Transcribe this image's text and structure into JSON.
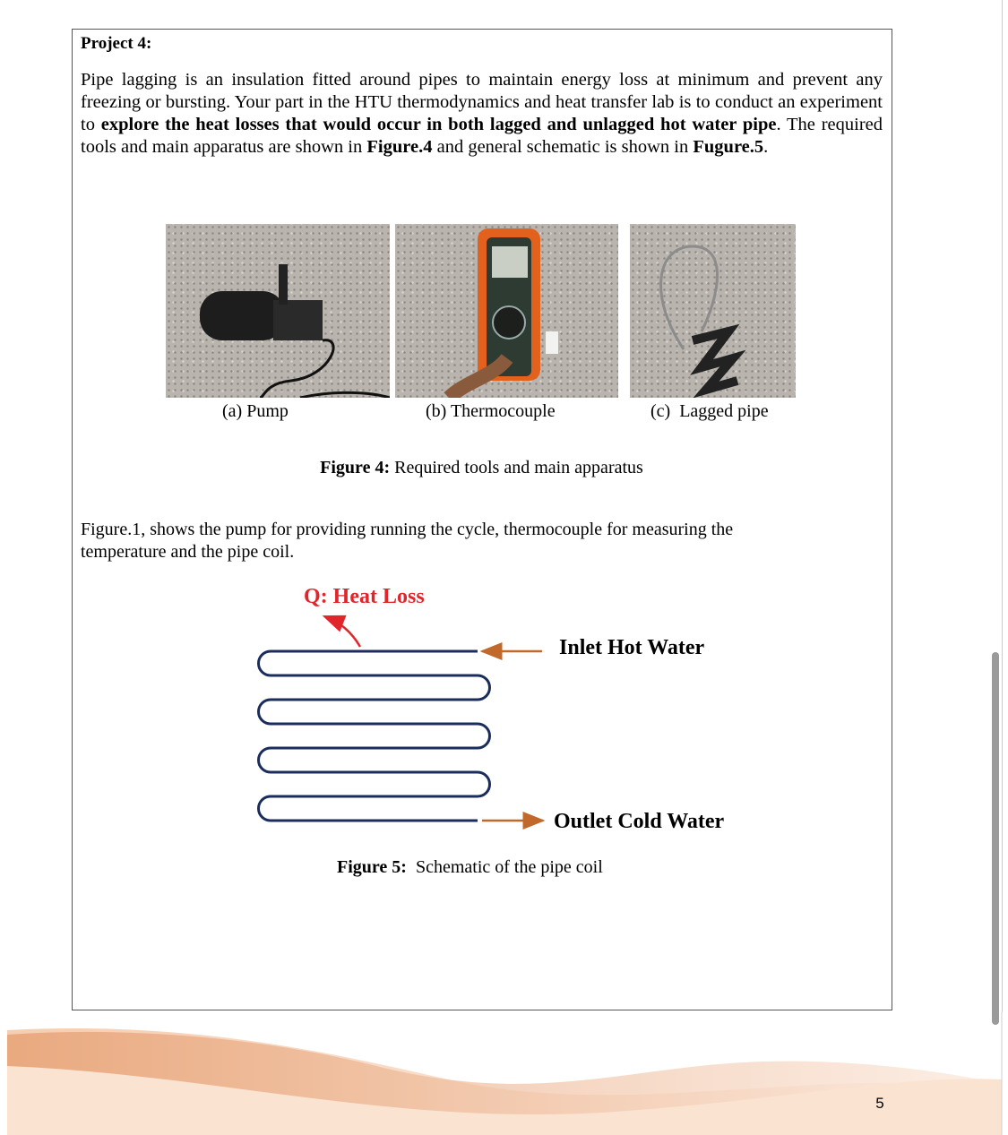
{
  "header": {
    "title": "Project 4:"
  },
  "intro": {
    "runs": [
      "Pipe lagging is an insulation fitted around pipes to maintain energy loss at minimum and prevent any freezing or bursting. Your part in the HTU thermodynamics and heat transfer lab is to conduct an experiment to ",
      "explore the heat losses that would occur in both lagged and unlagged hot water pipe",
      ". The required tools and main apparatus are shown in ",
      "Figure.4",
      " and general schematic is shown in ",
      "Fugure.5",
      "."
    ]
  },
  "figure4": {
    "captions": [
      "(a) Pump",
      "(b) Thermocouple",
      "(c)  Lagged pipe"
    ],
    "label": "Figure 4:",
    "caption": " Required tools and main apparatus"
  },
  "body": {
    "text": "Figure.1, shows the pump for providing running the cycle, thermocouple for measuring the temperature and the pipe coil."
  },
  "figure5": {
    "heat_loss": "Q: Heat Loss",
    "inlet": "Inlet Hot Water",
    "outlet": "Outlet Cold Water",
    "label": "Figure 5:",
    "caption": "  Schematic of the pipe coil"
  },
  "footer": {
    "page_number": "5"
  }
}
